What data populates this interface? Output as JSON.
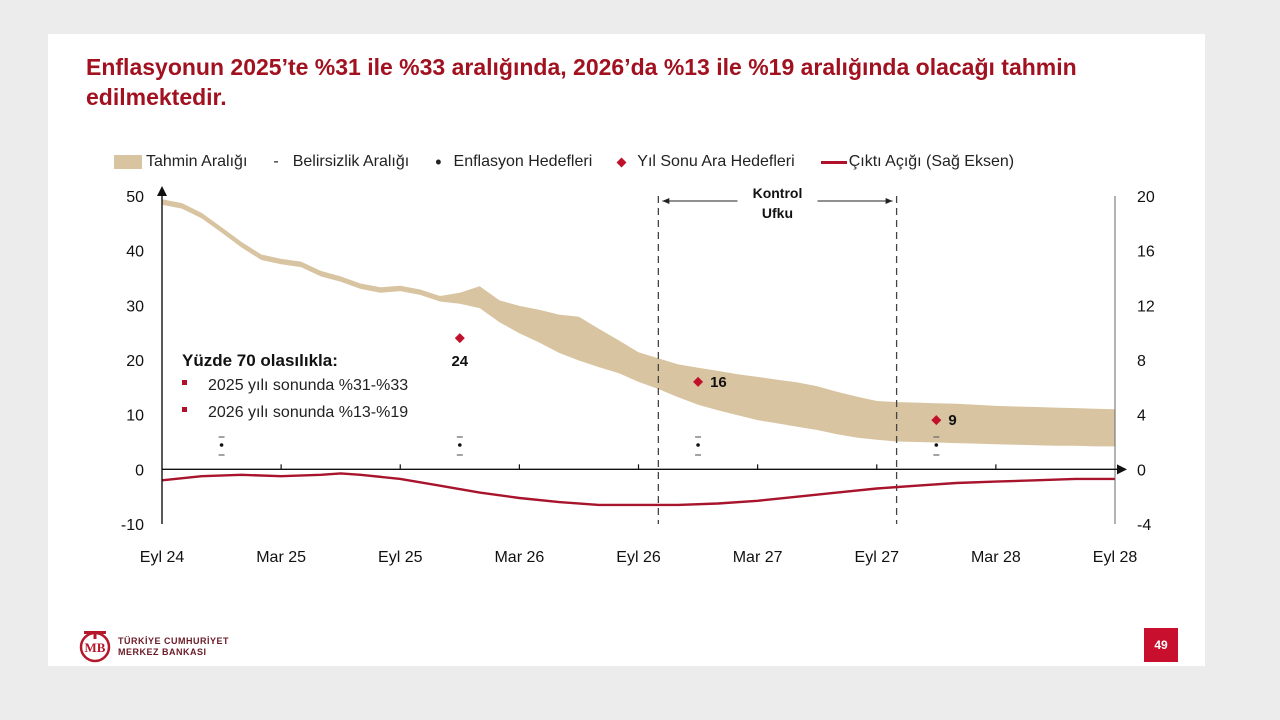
{
  "slide": {
    "title": "Enflasyonun 2025’te %31 ile %33 aralığında, 2026’da %13 ile %19 aralığında olacağı tahmin edilmektedir.",
    "page_number": "49",
    "logo": {
      "line1": "TÜRKİYE CUMHURİYET",
      "line2": "MERKEZ BANKASI"
    }
  },
  "legend": {
    "band": "Tahmin Aralığı",
    "uncertainty": "Belirsizlik Aralığı",
    "targets": "Enflasyon Hedefleri",
    "interim": "Yıl Sonu Ara Hedefleri",
    "gap": "Çıktı Açığı (Sağ Eksen)"
  },
  "annotation": {
    "heading": "Yüzde 70 olasılıkla:",
    "items": [
      "2025 yılı sonunda %31-%33",
      "2026 yılı sonunda %13-%19"
    ]
  },
  "chart_data": {
    "type": "area",
    "title": "Enflasyonun 2025’te %31 ile %33 aralığında, 2026’da %13 ile %19 aralığında olacağı tahmin edilmektedir.",
    "x_unit": "months since Eyl 24",
    "x_ticks": [
      {
        "x": 0,
        "label": "Eyl 24"
      },
      {
        "x": 6,
        "label": "Mar 25"
      },
      {
        "x": 12,
        "label": "Eyl 25"
      },
      {
        "x": 18,
        "label": "Mar 26"
      },
      {
        "x": 24,
        "label": "Eyl 26"
      },
      {
        "x": 30,
        "label": "Mar 27"
      },
      {
        "x": 36,
        "label": "Eyl 27"
      },
      {
        "x": 42,
        "label": "Mar 28"
      },
      {
        "x": 48,
        "label": "Eyl 28"
      }
    ],
    "y_left": {
      "range": [
        -10,
        50
      ],
      "ticks": [
        50,
        40,
        30,
        20,
        10,
        0,
        -10
      ]
    },
    "y_right": {
      "range": [
        -4,
        20
      ],
      "ticks": [
        20,
        16,
        12,
        8,
        4,
        0,
        -4
      ]
    },
    "series": [
      {
        "name": "Tahmin Aralığı",
        "kind": "band",
        "x": [
          0,
          1,
          2,
          3,
          4,
          5,
          6,
          7,
          8,
          9,
          10,
          11,
          12,
          13,
          14,
          15,
          16,
          17,
          18,
          19,
          20,
          21,
          22,
          23,
          24,
          25,
          26,
          27,
          28,
          29,
          30,
          31,
          32,
          33,
          34,
          35,
          36,
          37,
          38,
          39,
          40,
          41,
          42,
          43,
          44,
          45,
          46,
          47,
          48
        ],
        "upper": [
          49.4,
          48.7,
          46.9,
          44.3,
          41.6,
          39.3,
          38.5,
          38.0,
          36.3,
          35.3,
          34.0,
          33.3,
          33.6,
          32.9,
          31.7,
          32.3,
          33.5,
          30.9,
          29.9,
          29.2,
          28.3,
          27.9,
          25.7,
          23.6,
          21.4,
          20.3,
          19.2,
          18.6,
          18.0,
          17.4,
          16.9,
          16.4,
          15.9,
          15.2,
          14.2,
          13.3,
          12.5,
          12.3,
          12.2,
          12.1,
          12.0,
          11.8,
          11.6,
          11.5,
          11.4,
          11.3,
          11.2,
          11.1,
          11.0
        ],
        "lower": [
          48.4,
          47.7,
          45.9,
          43.3,
          40.6,
          38.3,
          37.5,
          37.0,
          35.3,
          34.3,
          33.0,
          32.3,
          32.6,
          31.9,
          30.7,
          30.3,
          29.5,
          26.9,
          24.9,
          23.2,
          21.3,
          19.9,
          18.7,
          17.6,
          16.0,
          14.7,
          13.2,
          11.8,
          10.8,
          9.9,
          9.0,
          8.4,
          7.8,
          7.2,
          6.4,
          5.8,
          5.4,
          5.1,
          5.0,
          4.9,
          4.8,
          4.7,
          4.6,
          4.5,
          4.4,
          4.3,
          4.3,
          4.2,
          4.2
        ]
      },
      {
        "name": "Çıktı Açığı (Sağ Eksen)",
        "kind": "line",
        "axis": "right",
        "x": [
          0,
          2,
          4,
          6,
          8,
          9,
          10,
          12,
          14,
          16,
          18,
          20,
          22,
          24,
          26,
          28,
          30,
          32,
          34,
          36,
          38,
          40,
          42,
          44,
          46,
          48
        ],
        "values": [
          -0.8,
          -0.5,
          -0.4,
          -0.5,
          -0.4,
          -0.3,
          -0.4,
          -0.7,
          -1.2,
          -1.7,
          -2.1,
          -2.4,
          -2.6,
          -2.6,
          -2.6,
          -2.5,
          -2.3,
          -2.0,
          -1.7,
          -1.4,
          -1.2,
          -1.0,
          -0.9,
          -0.8,
          -0.7,
          -0.7
        ]
      }
    ],
    "interim_targets": [
      {
        "x": 15,
        "value": 24,
        "label": "24"
      },
      {
        "x": 27,
        "value": 16,
        "label": "16"
      },
      {
        "x": 39,
        "value": 9,
        "label": "9"
      }
    ],
    "inflation_target_x": [
      3,
      15,
      27,
      39
    ],
    "control_horizon": {
      "label_line1": "Kontrol",
      "label_line2": "Ufku",
      "x_start": 25,
      "x_end": 37
    }
  }
}
